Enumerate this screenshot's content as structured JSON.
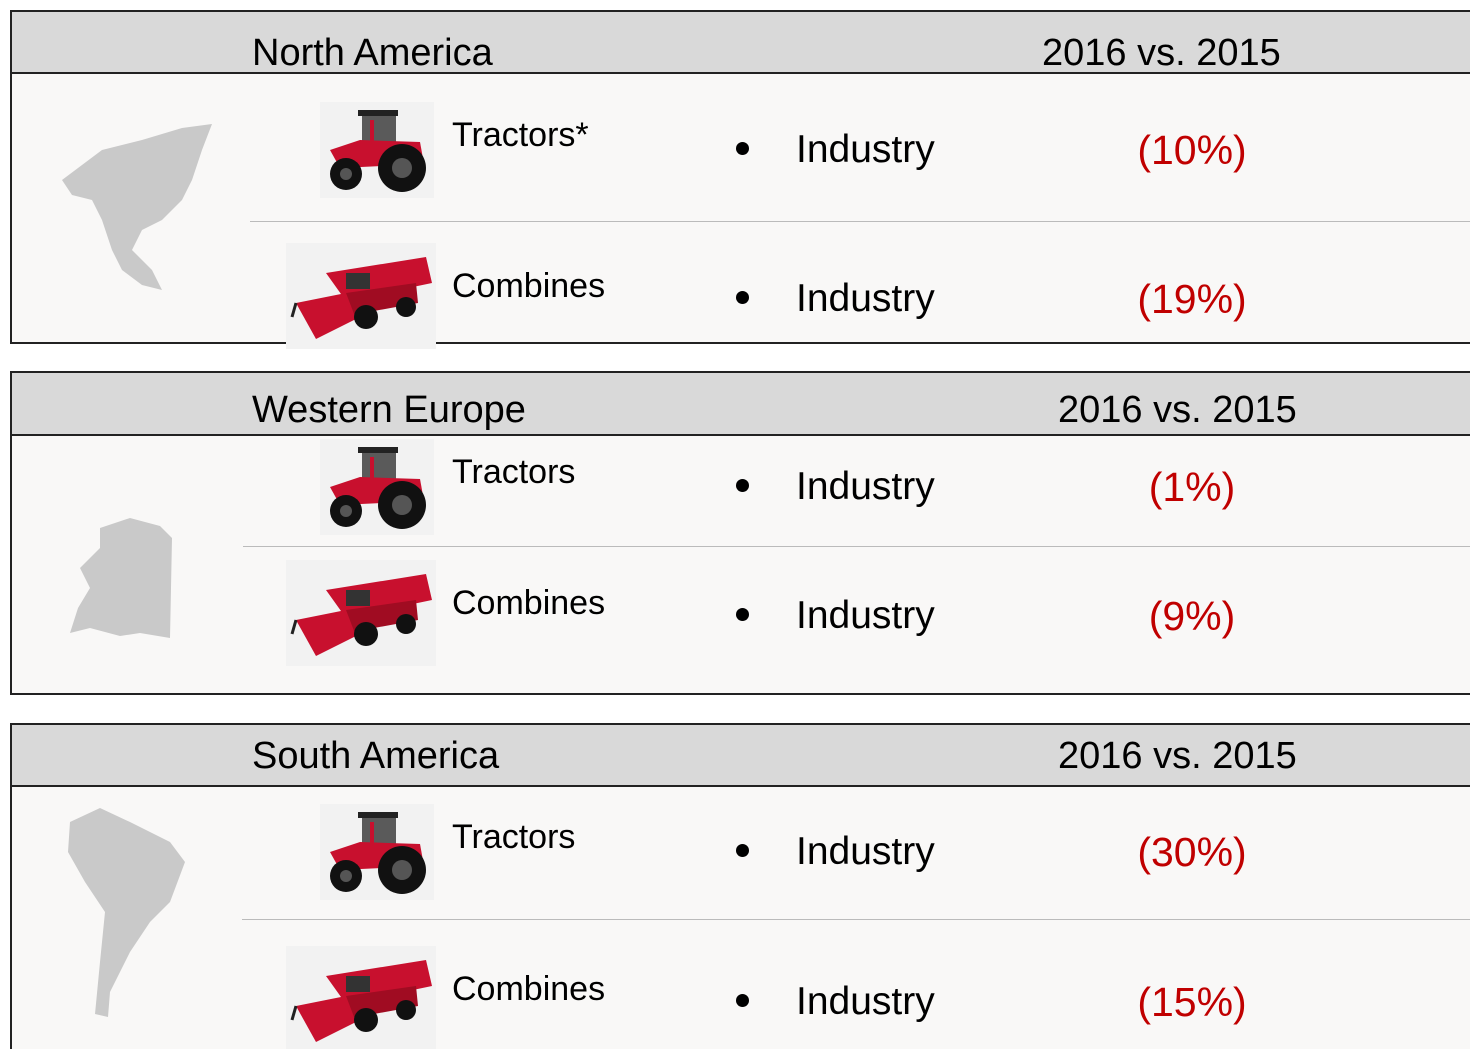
{
  "regions": [
    {
      "title": "North America",
      "comparison": "2016 vs. 2015",
      "rows": [
        {
          "product": "Tractors*",
          "segment": "Industry",
          "change": "(10%)"
        },
        {
          "product": "Combines",
          "segment": "Industry",
          "change": "(19%)"
        }
      ]
    },
    {
      "title": "Western Europe",
      "comparison": "2016 vs. 2015",
      "rows": [
        {
          "product": "Tractors",
          "segment": "Industry",
          "change": "(1%)"
        },
        {
          "product": "Combines",
          "segment": "Industry",
          "change": "(9%)"
        }
      ]
    },
    {
      "title": "South America",
      "comparison": "2016 vs. 2015",
      "rows": [
        {
          "product": "Tractors",
          "segment": "Industry",
          "change": "(30%)"
        },
        {
          "product": "Combines",
          "segment": "Industry",
          "change": "(15%)"
        }
      ]
    }
  ]
}
